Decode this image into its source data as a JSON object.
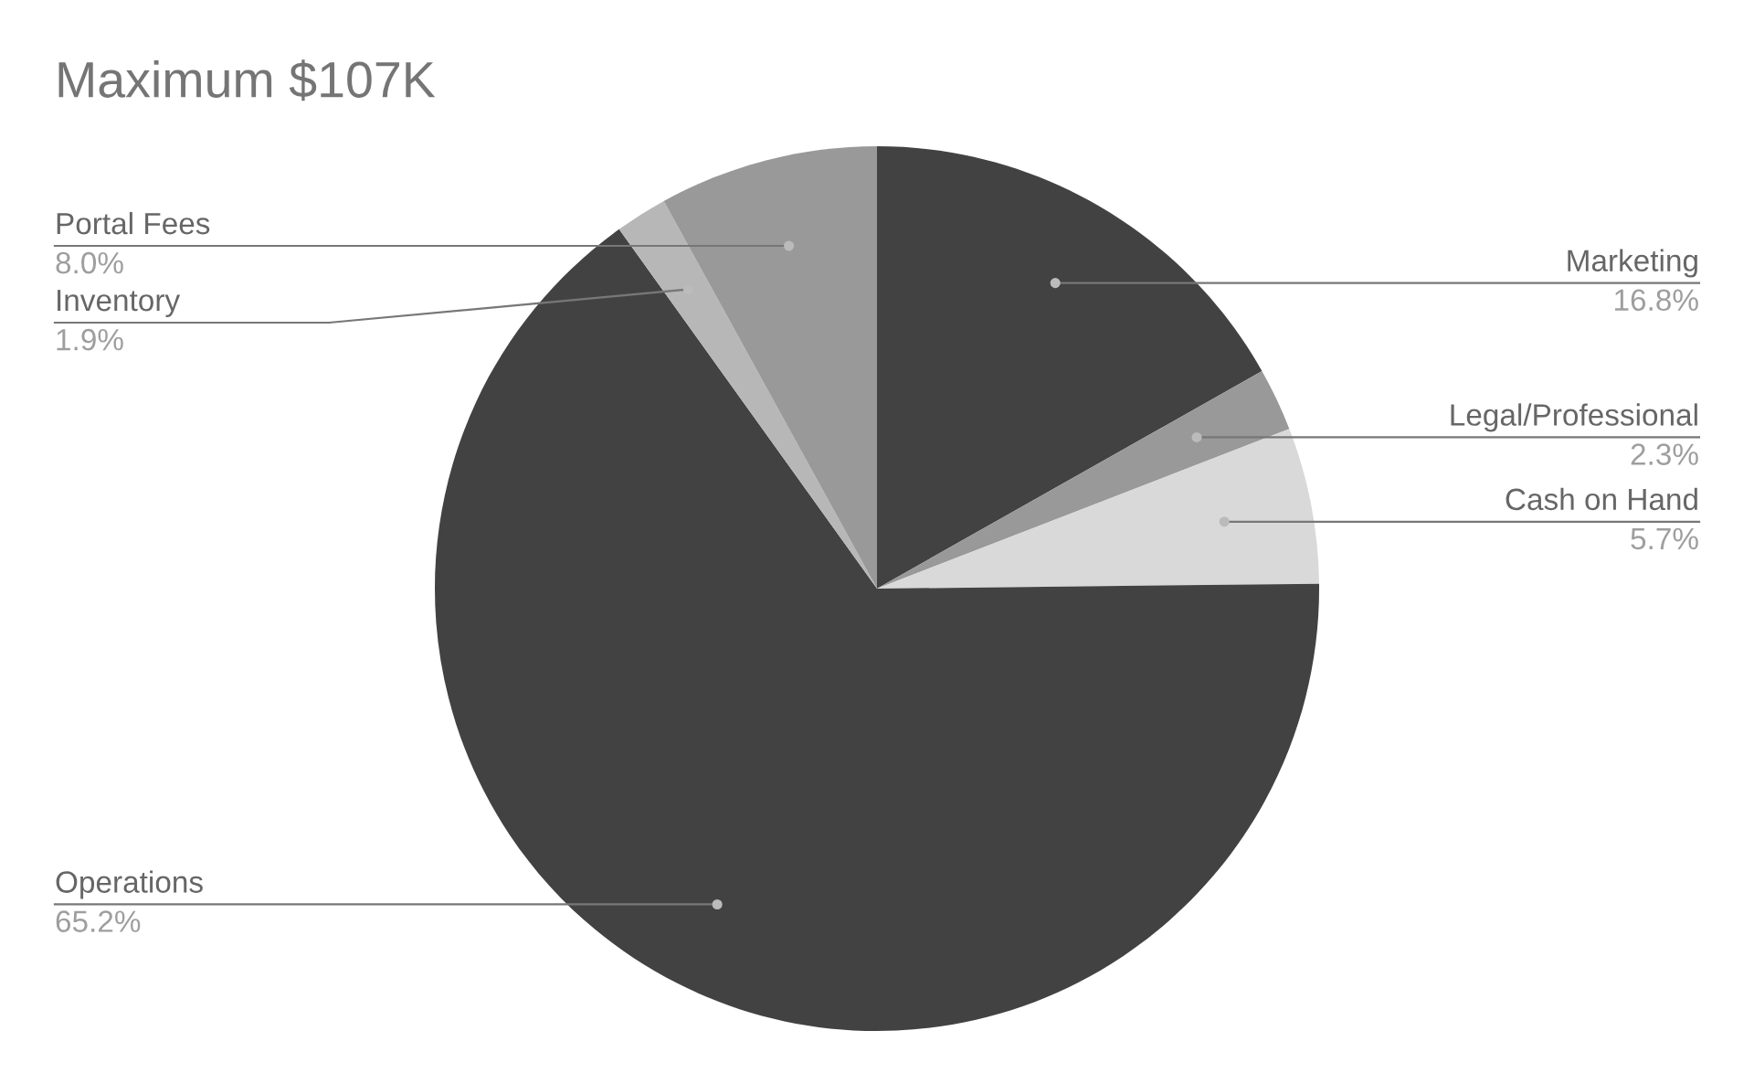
{
  "chart_data": {
    "type": "pie",
    "title": "Maximum $107K",
    "categories": [
      "Marketing",
      "Legal/Professional",
      "Cash on Hand",
      "Operations",
      "Inventory",
      "Portal Fees"
    ],
    "values": [
      16.8,
      2.3,
      5.7,
      65.2,
      1.9,
      8.0
    ],
    "value_labels": [
      "16.8%",
      "2.3%",
      "5.7%",
      "65.2%",
      "1.9%",
      "8.0%"
    ],
    "colors": [
      "#424242",
      "#999999",
      "#d9d9d9",
      "#424242",
      "#b7b7b7",
      "#999999"
    ],
    "legend": false
  }
}
